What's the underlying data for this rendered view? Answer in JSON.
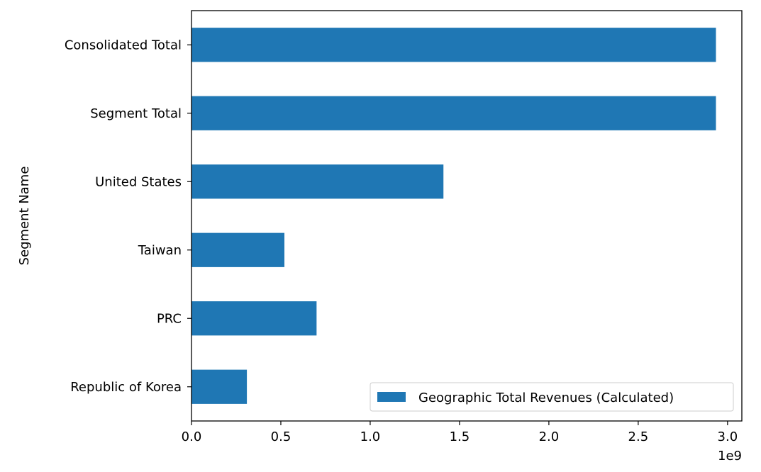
{
  "chart_data": {
    "type": "bar",
    "orientation": "horizontal",
    "categories": [
      "Consolidated Total",
      "Segment Total",
      "United States",
      "Taiwan",
      "PRC",
      "Republic of Korea"
    ],
    "series": [
      {
        "name": "Geographic Total Revenues (Calculated)",
        "values": [
          2935000000,
          2935000000,
          1410000000,
          520000000,
          700000000,
          310000000
        ],
        "color": "#1f77b4"
      }
    ],
    "title": "",
    "xlabel": "",
    "ylabel": "Segment Name",
    "xlim": [
      0,
      3080000000
    ],
    "x_ticks": [
      0,
      500000000,
      1000000000,
      1500000000,
      2000000000,
      2500000000,
      3000000000
    ],
    "x_tick_labels": [
      "0.0",
      "0.5",
      "1.0",
      "1.5",
      "2.0",
      "2.5",
      "3.0"
    ],
    "x_offset_text": "1e9",
    "grid": false,
    "legend": {
      "position": "lower-right",
      "entries": [
        "Geographic Total Revenues (Calculated)"
      ]
    }
  }
}
